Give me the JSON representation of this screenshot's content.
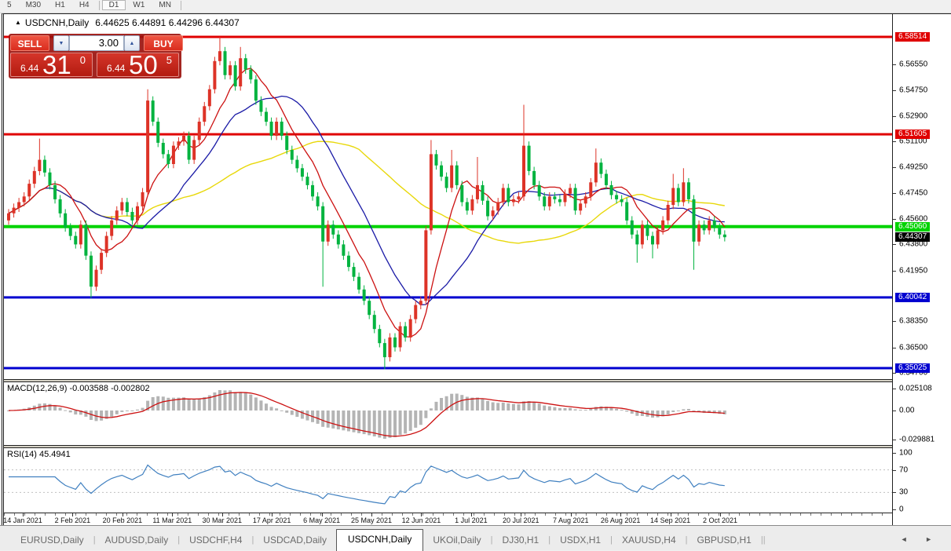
{
  "toolbar": {
    "timeframes": [
      {
        "label": "5",
        "active": false
      },
      {
        "label": "M30",
        "active": false
      },
      {
        "label": "H1",
        "active": false
      },
      {
        "label": "H4",
        "active": false
      },
      {
        "label": "D1",
        "active": true
      },
      {
        "label": "W1",
        "active": false
      },
      {
        "label": "MN",
        "active": false
      }
    ]
  },
  "chart": {
    "title_arrow": "▲",
    "symbol_title": "USDCNH,Daily",
    "quote_line": "6.44625 6.44891 6.44296 6.44307"
  },
  "trade_panel": {
    "sell_label": "SELL",
    "buy_label": "BUY",
    "volume": "3.00",
    "spinner_down": "▼",
    "spinner_up": "▲",
    "sell_price_small": "6.44",
    "sell_price_big": "31",
    "sell_price_sup": "0",
    "buy_price_small": "6.44",
    "buy_price_big": "50",
    "buy_price_sup": "5"
  },
  "price_axis": {
    "ticks": [
      "6.56550",
      "6.54750",
      "6.52900",
      "6.51100",
      "6.49250",
      "6.47450",
      "6.45600",
      "6.43800",
      "6.41950",
      "6.38350",
      "6.36500",
      "6.34700"
    ],
    "current": {
      "label": "6.44307",
      "price": 6.44307,
      "bg": "#000000"
    }
  },
  "macd": {
    "label": "MACD(12,26,9) -0.003588 -0.002802",
    "axis_top": "0.025108",
    "axis_zero": "0.00",
    "axis_bottom": "-0.029881"
  },
  "rsi": {
    "label": "RSI(14) 45.4941",
    "axis": [
      "100",
      "70",
      "30",
      "0"
    ],
    "levels": [
      70,
      30
    ]
  },
  "dates": [
    "14 Jan 2021",
    "2 Feb 2021",
    "20 Feb 2021",
    "11 Mar 2021",
    "30 Mar 2021",
    "17 Apr 2021",
    "6 May 2021",
    "25 May 2021",
    "12 Jun 2021",
    "1 Jul 2021",
    "20 Jul 2021",
    "7 Aug 2021",
    "26 Aug 2021",
    "14 Sep 2021",
    "2 Oct 2021"
  ],
  "tabs": {
    "items": [
      "EURUSD,Daily",
      "AUDUSD,Daily",
      "USDCHF,H4",
      "USDCAD,Daily",
      "USDCNH,Daily",
      "UKOil,Daily",
      "DJ30,H1",
      "USDX,H1",
      "XAUUSD,H4",
      "GBPUSD,H1"
    ],
    "active_index": 4,
    "arrows": "◄ ►"
  },
  "colors": {
    "bull": "#dd3327",
    "bear": "#00b33f",
    "ma_fast": "#cc1111",
    "ma_mid": "#1a1aa6",
    "ma_slow": "#e8d80a",
    "hline_red": "#e00000",
    "hline_green": "#00d300",
    "hline_blue": "#0000d0",
    "macd_hist": "#b4b4b4",
    "macd_signal": "#cc1111",
    "rsi_line": "#4080c0"
  },
  "chart_data": {
    "type": "candlestick",
    "symbol": "USDCNH",
    "timeframe": "Daily",
    "ohlc_current": {
      "open": 6.44625,
      "high": 6.44891,
      "low": 6.44296,
      "close": 6.44307
    },
    "hlines": [
      {
        "label": "6.58514",
        "price": 6.58514,
        "color": "#e00000",
        "width": 3
      },
      {
        "label": "6.51605",
        "price": 6.51605,
        "color": "#e00000",
        "width": 3
      },
      {
        "label": "6.45060",
        "price": 6.4506,
        "color": "#00d300",
        "width": 4
      },
      {
        "label": "6.40042",
        "price": 6.40042,
        "color": "#0000d0",
        "width": 3
      },
      {
        "label": "6.35025",
        "price": 6.35025,
        "color": "#0000d0",
        "width": 3
      }
    ],
    "first_open": 6.455,
    "closes": [
      6.46,
      6.464,
      6.468,
      6.472,
      6.481,
      6.49,
      6.498,
      6.489,
      6.48,
      6.47,
      6.46,
      6.45,
      6.444,
      6.438,
      6.452,
      6.43,
      6.408,
      6.42,
      6.432,
      6.444,
      6.455,
      6.462,
      6.468,
      6.461,
      6.455,
      6.465,
      6.475,
      6.54,
      6.525,
      6.51,
      6.502,
      6.495,
      6.508,
      6.511,
      6.515,
      6.498,
      6.512,
      6.525,
      6.536,
      6.548,
      6.568,
      6.575,
      6.558,
      6.565,
      6.55,
      6.57,
      6.562,
      6.555,
      6.54,
      6.532,
      6.525,
      6.515,
      6.525,
      6.515,
      6.505,
      6.498,
      6.492,
      6.486,
      6.48,
      6.472,
      6.465,
      6.44,
      6.452,
      6.445,
      6.438,
      6.43,
      6.422,
      6.415,
      6.406,
      6.398,
      6.388,
      6.378,
      6.368,
      6.358,
      6.372,
      6.365,
      6.38,
      6.372,
      6.385,
      6.395,
      6.398,
      6.448,
      6.502,
      6.494,
      6.486,
      6.478,
      6.494,
      6.48,
      6.468,
      6.462,
      6.47,
      6.48,
      6.469,
      6.458,
      6.462,
      6.468,
      6.478,
      6.468,
      6.47,
      6.472,
      6.508,
      6.49,
      6.48,
      6.472,
      6.465,
      6.472,
      6.47,
      6.468,
      6.474,
      6.478,
      6.462,
      6.467,
      6.472,
      6.482,
      6.496,
      6.488,
      6.48,
      6.473,
      6.47,
      6.468,
      6.455,
      6.445,
      6.438,
      6.452,
      6.444,
      6.438,
      6.448,
      6.455,
      6.466,
      6.478,
      6.468,
      6.482,
      6.47,
      6.44,
      6.452,
      6.448,
      6.455,
      6.45,
      6.445,
      6.4431
    ],
    "wick_overrides": {
      "6": [
        null,
        6.513
      ],
      "16": [
        6.4,
        null
      ],
      "27": [
        null,
        6.548
      ],
      "41": [
        null,
        6.5852
      ],
      "45": [
        null,
        6.578
      ],
      "61": [
        6.408,
        null
      ],
      "73": [
        6.3495,
        null
      ],
      "82": [
        null,
        6.512
      ],
      "86": [
        null,
        6.505
      ],
      "91": [
        null,
        6.5
      ],
      "100": [
        null,
        6.537
      ],
      "114": [
        null,
        6.506
      ],
      "122": [
        6.425,
        null
      ],
      "125": [
        6.428,
        null
      ],
      "129": [
        null,
        6.488
      ],
      "131": [
        null,
        6.492
      ],
      "133": [
        6.42,
        null
      ]
    }
  }
}
